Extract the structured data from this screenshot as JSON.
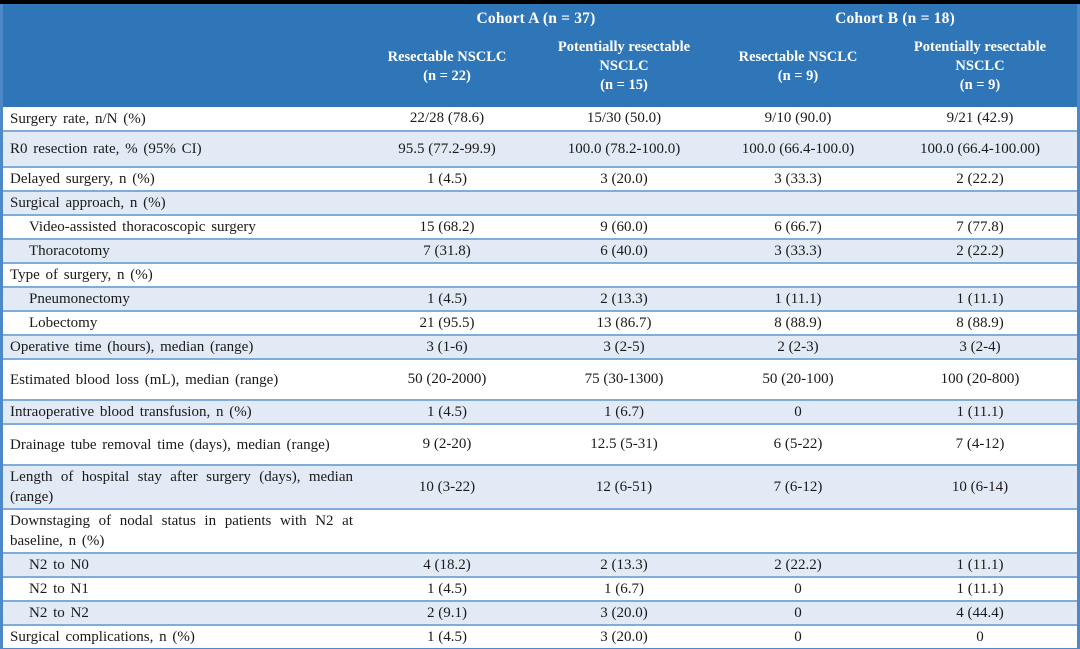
{
  "table": {
    "cohorts": [
      {
        "label": "Cohort A (n = 37)"
      },
      {
        "label": "Cohort B (n = 18)"
      }
    ],
    "subcolumns": [
      {
        "name": "Resectable NSCLC",
        "n": "(n = 22)"
      },
      {
        "name": "Potentially resectable NSCLC",
        "n": "(n = 15)"
      },
      {
        "name": "Resectable NSCLC",
        "n": "(n = 9)"
      },
      {
        "name": "Potentially resectable NSCLC",
        "n": "(n = 9)"
      }
    ],
    "rows": [
      {
        "label": "Surgery rate, n/N (%)",
        "indent": false,
        "tall": false,
        "values": [
          "22/28 (78.6)",
          "15/30 (50.0)",
          "9/10 (90.0)",
          "9/21 (42.9)"
        ]
      },
      {
        "label": "R0 resection rate, % (95% CI)",
        "indent": false,
        "tall": true,
        "values": [
          "95.5 (77.2-99.9)",
          "100.0 (78.2-100.0)",
          "100.0 (66.4-100.0)",
          "100.0 (66.4-100.00)"
        ]
      },
      {
        "label": "Delayed surgery, n (%)",
        "indent": false,
        "tall": false,
        "values": [
          "1 (4.5)",
          "3 (20.0)",
          "3 (33.3)",
          "2 (22.2)"
        ]
      },
      {
        "label": "Surgical approach, n (%)",
        "indent": false,
        "tall": false,
        "values": [
          "",
          "",
          "",
          ""
        ]
      },
      {
        "label": "Video-assisted thoracoscopic surgery",
        "indent": true,
        "tall": false,
        "values": [
          "15 (68.2)",
          "9 (60.0)",
          "6 (66.7)",
          "7 (77.8)"
        ]
      },
      {
        "label": "Thoracotomy",
        "indent": true,
        "tall": false,
        "values": [
          "7 (31.8)",
          "6 (40.0)",
          "3 (33.3)",
          "2 (22.2)"
        ]
      },
      {
        "label": "Type of surgery, n (%)",
        "indent": false,
        "tall": false,
        "values": [
          "",
          "",
          "",
          ""
        ]
      },
      {
        "label": "Pneumonectomy",
        "indent": true,
        "tall": false,
        "values": [
          "1 (4.5)",
          "2 (13.3)",
          "1 (11.1)",
          "1 (11.1)"
        ]
      },
      {
        "label": "Lobectomy",
        "indent": true,
        "tall": false,
        "values": [
          "21 (95.5)",
          "13 (86.7)",
          "8 (88.9)",
          "8 (88.9)"
        ]
      },
      {
        "label": "Operative time (hours), median (range)",
        "indent": false,
        "tall": false,
        "values": [
          "3 (1-6)",
          "3 (2-5)",
          "2 (2-3)",
          "3 (2-4)"
        ]
      },
      {
        "label": "Estimated blood loss (mL), median (range)",
        "indent": false,
        "xtall": true,
        "values": [
          "50 (20-2000)",
          "75 (30-1300)",
          "50 (20-100)",
          "100 (20-800)"
        ]
      },
      {
        "label": "Intraoperative blood transfusion, n (%)",
        "indent": false,
        "tall": false,
        "values": [
          "1 (4.5)",
          "1 (6.7)",
          "0",
          "1 (11.1)"
        ]
      },
      {
        "label": "Drainage tube removal time (days), median (range)",
        "indent": false,
        "xtall": true,
        "values": [
          "9 (2-20)",
          "12.5 (5-31)",
          "6 (5-22)",
          "7 (4-12)"
        ]
      },
      {
        "label": "Length of hospital stay after surgery (days), median (range)",
        "indent": false,
        "xtall": true,
        "values": [
          "10 (3-22)",
          "12 (6-51)",
          "7 (6-12)",
          "10 (6-14)"
        ]
      },
      {
        "label": "Downstaging of nodal status in patients with N2 at baseline, n (%)",
        "indent": false,
        "xtall": true,
        "values": [
          "",
          "",
          "",
          ""
        ]
      },
      {
        "label": "N2 to N0",
        "indent": true,
        "tall": false,
        "values": [
          "4 (18.2)",
          "2 (13.3)",
          "2 (22.2)",
          "1 (11.1)"
        ]
      },
      {
        "label": "N2 to N1",
        "indent": true,
        "tall": false,
        "values": [
          "1 (4.5)",
          "1 (6.7)",
          "0",
          "1 (11.1)"
        ]
      },
      {
        "label": "N2 to N2",
        "indent": true,
        "tall": false,
        "values": [
          "2 (9.1)",
          "3 (20.0)",
          "0",
          "4 (44.4)"
        ]
      },
      {
        "label": "Surgical complications, n (%)",
        "indent": false,
        "tall": false,
        "values": [
          "1 (4.5)",
          "3 (20.0)",
          "0",
          "0"
        ]
      }
    ],
    "colors": {
      "header_bg": "#2E76B8",
      "stripe_bg": "#E2EAF5",
      "row_border": "#7FACDB",
      "frame_border": "#4D88C8",
      "text": "#1a1a1a",
      "header_text": "#ffffff"
    }
  }
}
